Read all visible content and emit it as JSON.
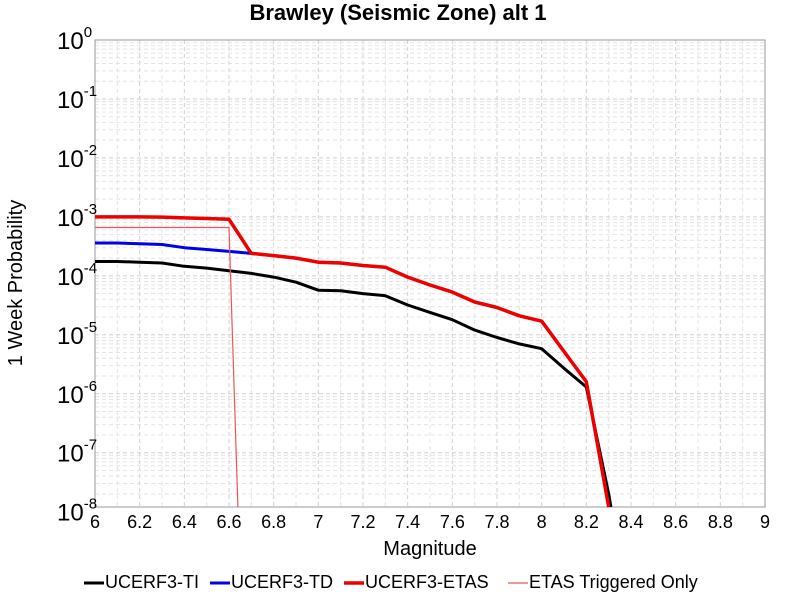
{
  "chart_data": {
    "type": "line",
    "title": "Brawley (Seismic Zone) alt 1",
    "xlabel": "Magnitude",
    "ylabel": "1 Week Probability",
    "xlim": [
      6,
      9
    ],
    "ylim": [
      1.2e-08,
      1
    ],
    "yscale": "log",
    "grid": true,
    "legend_position": "bottom",
    "xticks": [
      "6",
      "6.2",
      "6.4",
      "6.6",
      "6.8",
      "7",
      "7.2",
      "7.4",
      "7.6",
      "7.8",
      "8",
      "8.2",
      "8.4",
      "8.6",
      "8.8",
      "9"
    ],
    "yticks": [
      {
        "base": "10",
        "exp": "0"
      },
      {
        "base": "10",
        "exp": "-1"
      },
      {
        "base": "10",
        "exp": "-2"
      },
      {
        "base": "10",
        "exp": "-3"
      },
      {
        "base": "10",
        "exp": "-4"
      },
      {
        "base": "10",
        "exp": "-5"
      },
      {
        "base": "10",
        "exp": "-6"
      },
      {
        "base": "10",
        "exp": "-7"
      },
      {
        "base": "10",
        "exp": "-8"
      }
    ],
    "series": [
      {
        "name": "UCERF3-TI",
        "color": "#000000",
        "width": 3,
        "points": [
          [
            6.0,
            0.000175
          ],
          [
            6.1,
            0.000175
          ],
          [
            6.2,
            0.00017
          ],
          [
            6.3,
            0.000165
          ],
          [
            6.4,
            0.000145
          ],
          [
            6.5,
            0.000135
          ],
          [
            6.6,
            0.000122
          ],
          [
            6.7,
            0.00011
          ],
          [
            6.8,
            9.5e-05
          ],
          [
            6.9,
            7.8e-05
          ],
          [
            7.0,
            5.7e-05
          ],
          [
            7.1,
            5.6e-05
          ],
          [
            7.2,
            5e-05
          ],
          [
            7.3,
            4.6e-05
          ],
          [
            7.4,
            3.2e-05
          ],
          [
            7.5,
            2.4e-05
          ],
          [
            7.6,
            1.8e-05
          ],
          [
            7.7,
            1.2e-05
          ],
          [
            7.8,
            9e-06
          ],
          [
            7.9,
            7e-06
          ],
          [
            8.0,
            5.8e-06
          ],
          [
            8.1,
            2.7e-06
          ],
          [
            8.2,
            1.3e-06
          ],
          [
            8.3,
            2e-08
          ],
          [
            8.31,
            1.2e-08
          ]
        ]
      },
      {
        "name": "UCERF3-TD",
        "color": "#0000ee",
        "width": 3,
        "points": [
          [
            6.0,
            0.00036
          ],
          [
            6.1,
            0.00036
          ],
          [
            6.2,
            0.00035
          ],
          [
            6.3,
            0.00034
          ],
          [
            6.4,
            0.0003
          ],
          [
            6.5,
            0.00028
          ],
          [
            6.6,
            0.00026
          ],
          [
            6.7,
            0.00024
          ],
          [
            6.8,
            0.00022
          ],
          [
            6.9,
            0.0002
          ],
          [
            7.0,
            0.00017
          ],
          [
            7.1,
            0.000165
          ],
          [
            7.2,
            0.00015
          ],
          [
            7.3,
            0.00014
          ],
          [
            7.4,
            9.5e-05
          ],
          [
            7.5,
            7e-05
          ],
          [
            7.6,
            5.3e-05
          ],
          [
            7.7,
            3.6e-05
          ],
          [
            7.8,
            2.9e-05
          ],
          [
            7.9,
            2.1e-05
          ],
          [
            8.0,
            1.7e-05
          ],
          [
            8.1,
            5.2e-06
          ],
          [
            8.2,
            1.6e-06
          ],
          [
            8.3,
            1.2e-08
          ]
        ]
      },
      {
        "name": "UCERF3-ETAS",
        "color": "#ee0000",
        "width": 3.5,
        "points": [
          [
            6.0,
            0.001
          ],
          [
            6.1,
            0.001
          ],
          [
            6.2,
            0.001
          ],
          [
            6.3,
            0.00099
          ],
          [
            6.4,
            0.00096
          ],
          [
            6.5,
            0.00094
          ],
          [
            6.6,
            0.00091
          ],
          [
            6.7,
            0.00024
          ],
          [
            6.8,
            0.00022
          ],
          [
            6.9,
            0.0002
          ],
          [
            7.0,
            0.00017
          ],
          [
            7.1,
            0.000165
          ],
          [
            7.2,
            0.00015
          ],
          [
            7.3,
            0.00014
          ],
          [
            7.4,
            9.5e-05
          ],
          [
            7.5,
            7e-05
          ],
          [
            7.6,
            5.3e-05
          ],
          [
            7.7,
            3.6e-05
          ],
          [
            7.8,
            2.9e-05
          ],
          [
            7.9,
            2.1e-05
          ],
          [
            8.0,
            1.7e-05
          ],
          [
            8.1,
            5.2e-06
          ],
          [
            8.2,
            1.6e-06
          ],
          [
            8.3,
            1.2e-08
          ]
        ]
      },
      {
        "name": "ETAS Triggered Only",
        "color": "#ee5555",
        "width": 1.2,
        "points": [
          [
            6.0,
            0.00066
          ],
          [
            6.6,
            0.00066
          ],
          [
            6.64,
            1.2e-08
          ]
        ]
      }
    ]
  }
}
